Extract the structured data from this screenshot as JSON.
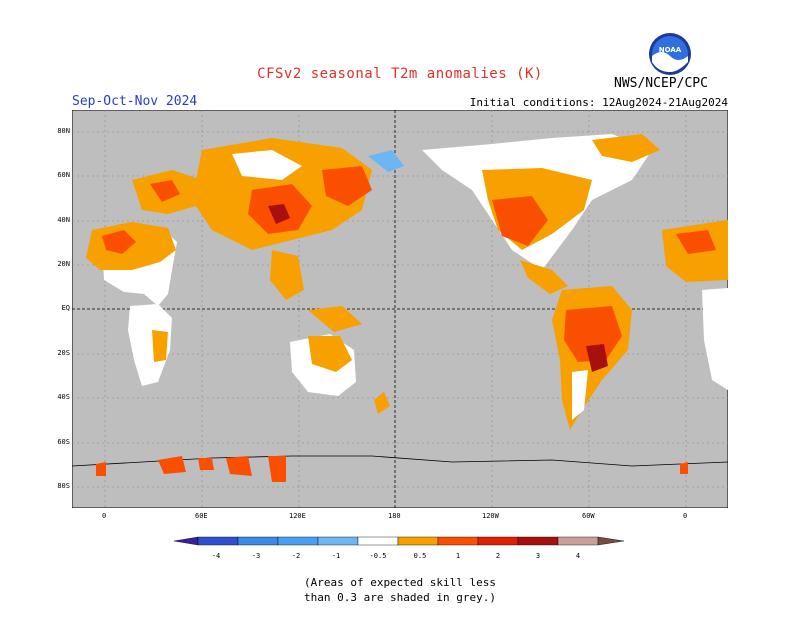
{
  "title": "CFSv2 seasonal T2m anomalies (K)",
  "season": "Sep-Oct-Nov 2024",
  "initial_conditions": "Initial conditions: 12Aug2024-21Aug2024",
  "agency": "NWS/NCEP/CPC",
  "logo_text": "NOAA",
  "note_line1": "(Areas of expected skill less",
  "note_line2": "than 0.3 are shaded in grey.)",
  "lat_labels": [
    "80N",
    "60N",
    "40N",
    "20N",
    "EQ",
    "20S",
    "40S",
    "60S",
    "80S"
  ],
  "lon_labels": [
    "0",
    "60E",
    "120E",
    "180",
    "120W",
    "60W",
    "0"
  ],
  "colorbar": {
    "labels": [
      "-4",
      "-3",
      "-2",
      "-1",
      "-0.5",
      "0.5",
      "1",
      "2",
      "3",
      "4"
    ],
    "colors": [
      "#3a1f9e",
      "#2f4fd0",
      "#3a8be8",
      "#6cb6f4",
      "#ffffff",
      "#f7a000",
      "#fb4f00",
      "#e01e00",
      "#a81010",
      "#c8a098",
      "#7a4a40"
    ]
  },
  "colors": {
    "map_background": "#bebebe",
    "warm_05_1": "#f7a000",
    "warm_1_2": "#fb4f00",
    "warm_2_3": "#a81010",
    "cool_05_1": "#6cb6f4",
    "neutral": "#ffffff"
  }
}
